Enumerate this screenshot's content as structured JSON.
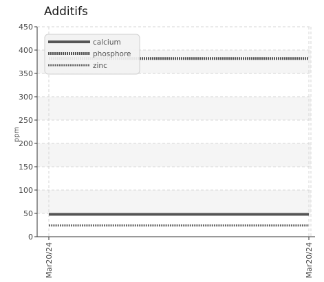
{
  "chart_data": {
    "type": "line",
    "title": "Additifs",
    "ylabel": "ppm",
    "xlabel": "",
    "ylim": [
      0,
      450
    ],
    "yticks": [
      0,
      50,
      100,
      150,
      200,
      250,
      300,
      350,
      400,
      450
    ],
    "x": [
      "Mar20/24",
      "Mar20/24"
    ],
    "grid": true,
    "legend_position": "top-left",
    "series": [
      {
        "name": "calcium",
        "values": [
          48,
          48
        ],
        "color": "#555555",
        "style": "solid"
      },
      {
        "name": "phosphore",
        "values": [
          382,
          382
        ],
        "color": "#555555",
        "style": "dashed-thick"
      },
      {
        "name": "zinc",
        "values": [
          24,
          24
        ],
        "color": "#666666",
        "style": "dashed"
      }
    ]
  }
}
